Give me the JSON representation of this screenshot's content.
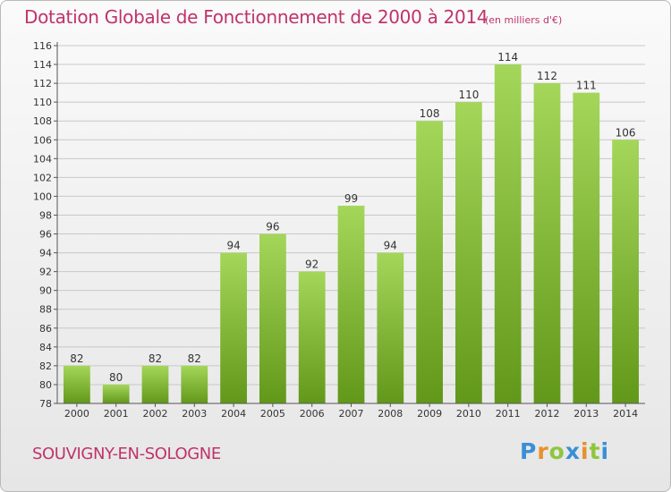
{
  "chart_data": {
    "type": "bar",
    "title": "Dotation Globale de Fonctionnement de 2000 à 2014",
    "subtitle": "(en milliers d'€)",
    "xlabel": "",
    "ylabel": "",
    "categories": [
      "2000",
      "2001",
      "2002",
      "2003",
      "2004",
      "2005",
      "2006",
      "2007",
      "2008",
      "2009",
      "2010",
      "2011",
      "2012",
      "2013",
      "2014"
    ],
    "values": [
      82,
      80,
      82,
      82,
      94,
      96,
      92,
      99,
      94,
      108,
      110,
      114,
      112,
      111,
      106
    ],
    "ylim": [
      78,
      116
    ],
    "yticks": [
      78,
      80,
      82,
      84,
      86,
      88,
      90,
      92,
      94,
      96,
      98,
      100,
      102,
      104,
      106,
      108,
      110,
      112,
      114,
      116
    ],
    "grid": true,
    "legend": "none",
    "bar_color_top": "#a4d65a",
    "bar_color_bottom": "#62981a"
  },
  "footer": {
    "commune": "SOUVIGNY-EN-SOLOGNE",
    "logo_letters": [
      "P",
      "r",
      "o",
      "x",
      "i",
      "t",
      "i"
    ]
  },
  "colors": {
    "title": "#c0336a",
    "grid": "#c8c8c8",
    "axis": "#555555"
  }
}
